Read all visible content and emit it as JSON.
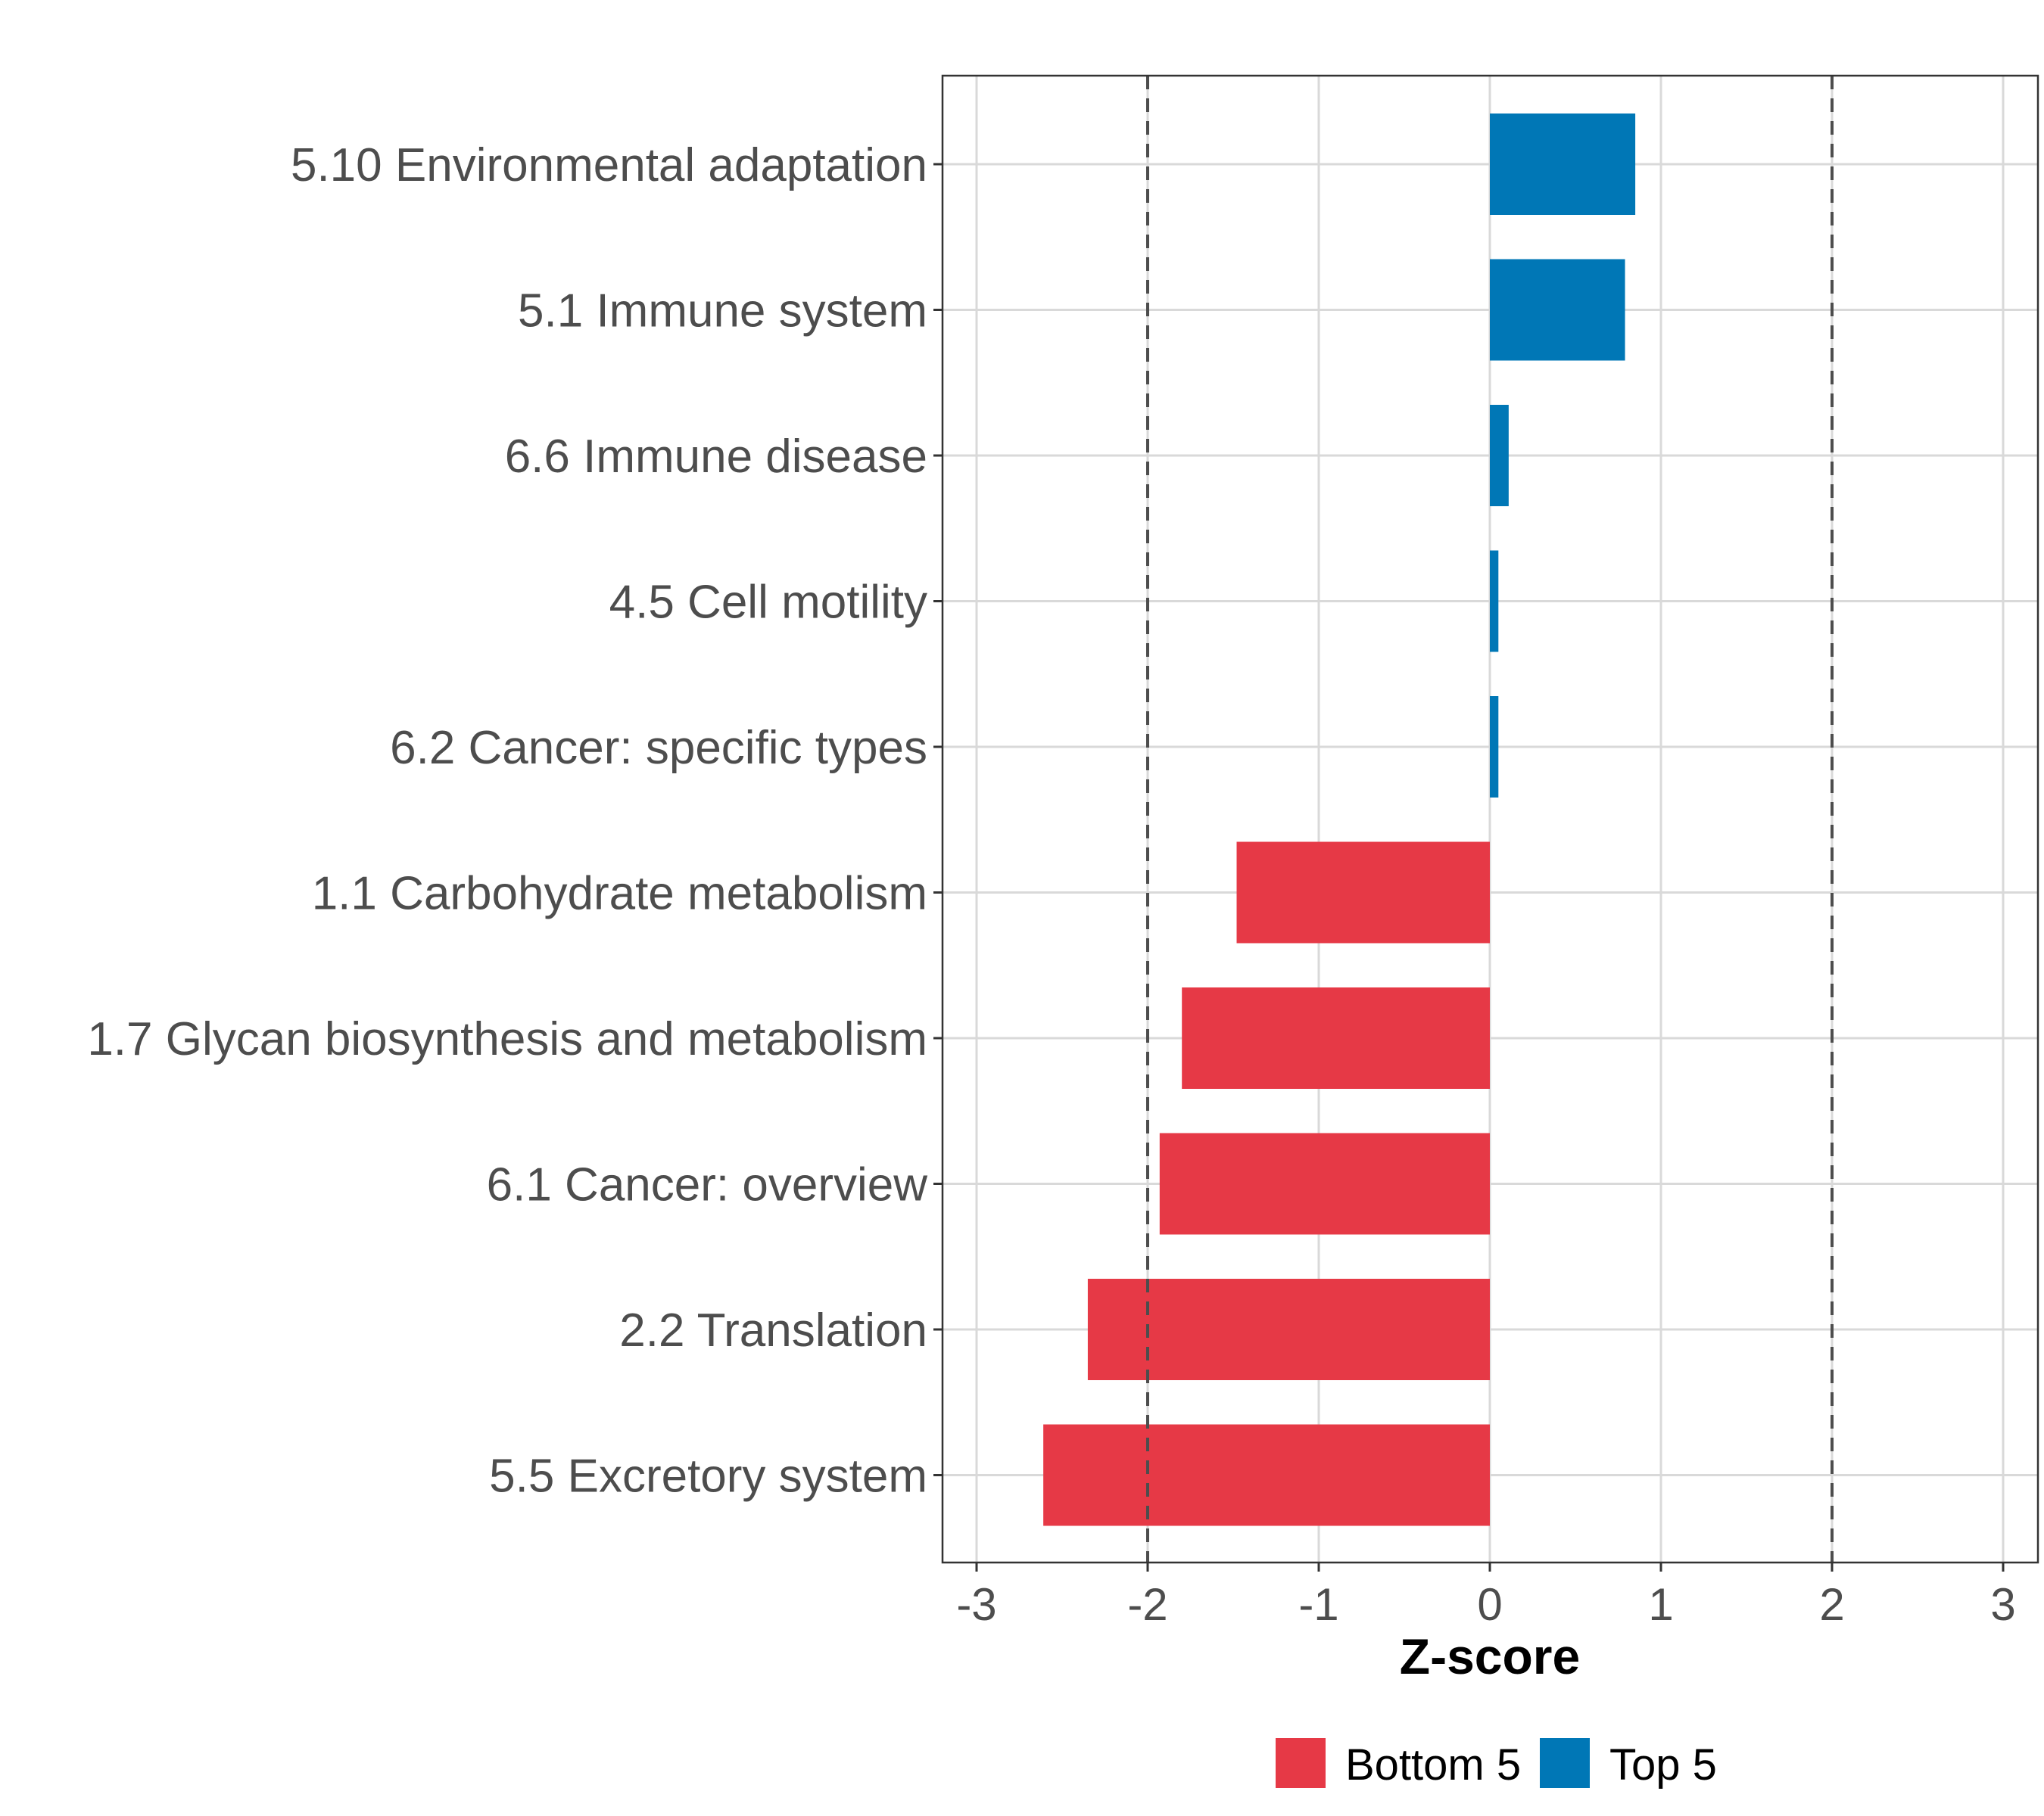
{
  "chart_data": {
    "type": "bar",
    "orientation": "horizontal",
    "title": "",
    "xlabel": "Z-score",
    "ylabel": "",
    "xlim": [
      -3.2,
      3.2
    ],
    "xticks": [
      -3,
      -2,
      -1,
      0,
      1,
      2,
      3
    ],
    "xtick_labels": [
      "-3",
      "-2",
      "-1",
      "0",
      "1",
      "2",
      "3"
    ],
    "reference_lines": [
      -2,
      2
    ],
    "grid": true,
    "legend_position": "bottom",
    "categories": [
      "5.10 Environmental adaptation",
      "5.1 Immune system",
      "6.6 Immune disease",
      "4.5 Cell motility",
      "6.2 Cancer: specific types",
      "1.1 Carbohydrate metabolism",
      "1.7 Glycan biosynthesis and metabolism",
      "6.1 Cancer: overview",
      "2.2 Translation",
      "5.5 Excretory system"
    ],
    "values": [
      0.85,
      0.79,
      0.11,
      0.05,
      0.05,
      -1.48,
      -1.8,
      -1.93,
      -2.35,
      -2.61
    ],
    "groups": [
      "Top 5",
      "Top 5",
      "Top 5",
      "Top 5",
      "Top 5",
      "Bottom 5",
      "Bottom 5",
      "Bottom 5",
      "Bottom 5",
      "Bottom 5"
    ],
    "legend": [
      {
        "label": "Bottom 5",
        "color": "#e63946"
      },
      {
        "label": "Top 5",
        "color": "#0077b6"
      }
    ]
  }
}
